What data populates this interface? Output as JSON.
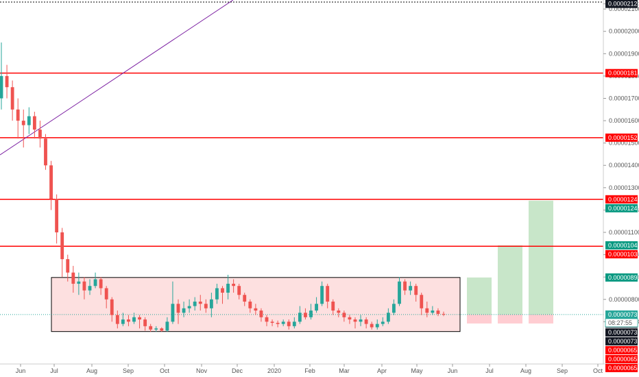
{
  "chart_data": {
    "type": "candlestick",
    "title": "",
    "xlabel": "",
    "ylabel": "",
    "grid": false,
    "ylim": [
      6.3e-06,
      2.125e-05
    ],
    "y_ticks": [
      "0.00002123",
      "0.00002100",
      "0.00002000",
      "0.00001900",
      "0.00001800",
      "0.00001700",
      "0.00001600",
      "0.00001500",
      "0.00001400",
      "0.00001300",
      "0.00001200",
      "0.00001100",
      "0.00001000",
      "0.00000900",
      "0.00000800",
      "0.00000700"
    ],
    "x_ticks": [
      "Jun",
      "Jul",
      "Aug",
      "Sep",
      "Oct",
      "Nov",
      "Dec",
      "2020",
      "Feb",
      "Mar",
      "Apr",
      "May",
      "Jun",
      "Jul",
      "Aug",
      "Sep",
      "Oct"
    ],
    "colors": {
      "up": "#26a69a",
      "down": "#ef5350",
      "level": "#ff0000",
      "trendline": "#7b1fa2",
      "range_fill": "#fde0e0",
      "target_fill": "#c8e6c9",
      "stop_fill": "#ffcdd2",
      "current_line": "#26a69a"
    },
    "horizontal_levels": [
      1.813e-05,
      1.524e-05,
      1.248e-05,
      1.038e-05
    ],
    "range_box": {
      "top": 8.98e-06,
      "bottom": 6.56e-06
    },
    "current_price": 7.32e-06,
    "countdown": "08:27:55",
    "candles": [
      {
        "o": 1.7e-05,
        "c": 1.8e-05,
        "h": 1.95e-05,
        "l": 1.65e-05
      },
      {
        "o": 1.8e-05,
        "c": 1.75e-05,
        "h": 1.85e-05,
        "l": 1.7e-05
      },
      {
        "o": 1.75e-05,
        "c": 1.65e-05,
        "h": 1.78e-05,
        "l": 1.6e-05
      },
      {
        "o": 1.65e-05,
        "c": 1.6e-05,
        "h": 1.7e-05,
        "l": 1.52e-05
      },
      {
        "o": 1.6e-05,
        "c": 1.58e-05,
        "h": 1.65e-05,
        "l": 1.48e-05
      },
      {
        "o": 1.58e-05,
        "c": 1.62e-05,
        "h": 1.66e-05,
        "l": 1.54e-05
      },
      {
        "o": 1.62e-05,
        "c": 1.56e-05,
        "h": 1.64e-05,
        "l": 1.52e-05
      },
      {
        "o": 1.56e-05,
        "c": 1.52e-05,
        "h": 1.6e-05,
        "l": 1.48e-05
      },
      {
        "o": 1.52e-05,
        "c": 1.4e-05,
        "h": 1.54e-05,
        "l": 1.38e-05
      },
      {
        "o": 1.4e-05,
        "c": 1.25e-05,
        "h": 1.42e-05,
        "l": 1.2e-05
      },
      {
        "o": 1.25e-05,
        "c": 1.1e-05,
        "h": 1.27e-05,
        "l": 1.05e-05
      },
      {
        "o": 1.1e-05,
        "c": 9.8e-06,
        "h": 1.12e-05,
        "l": 9e-06
      },
      {
        "o": 9.8e-06,
        "c": 9.2e-06,
        "h": 1e-05,
        "l": 8.8e-06
      },
      {
        "o": 9.2e-06,
        "c": 8.7e-06,
        "h": 9.5e-06,
        "l": 8.3e-06
      },
      {
        "o": 8.7e-06,
        "c": 8.8e-06,
        "h": 9.2e-06,
        "l": 8.2e-06
      },
      {
        "o": 8.8e-06,
        "c": 8.4e-06,
        "h": 9e-06,
        "l": 8e-06
      },
      {
        "o": 8.4e-06,
        "c": 8.6e-06,
        "h": 8.9e-06,
        "l": 8.2e-06
      },
      {
        "o": 8.6e-06,
        "c": 8.9e-06,
        "h": 9.2e-06,
        "l": 8.5e-06
      },
      {
        "o": 8.9e-06,
        "c": 8.5e-06,
        "h": 9e-06,
        "l": 8.2e-06
      },
      {
        "o": 8.5e-06,
        "c": 8e-06,
        "h": 8.6e-06,
        "l": 7.6e-06
      },
      {
        "o": 8e-06,
        "c": 7.3e-06,
        "h": 8.1e-06,
        "l": 7e-06
      },
      {
        "o": 7.3e-06,
        "c": 6.9e-06,
        "h": 7.5e-06,
        "l": 6.7e-06
      },
      {
        "o": 6.9e-06,
        "c": 7.1e-06,
        "h": 7.4e-06,
        "l": 6.8e-06
      },
      {
        "o": 7.1e-06,
        "c": 7e-06,
        "h": 7.3e-06,
        "l": 6.8e-06
      },
      {
        "o": 7e-06,
        "c": 7.2e-06,
        "h": 7.4e-06,
        "l": 6.9e-06
      },
      {
        "o": 7.2e-06,
        "c": 7.1e-06,
        "h": 7.3e-06,
        "l": 6.7e-06
      },
      {
        "o": 7.1e-06,
        "c": 6.8e-06,
        "h": 7.2e-06,
        "l": 6.6e-06
      },
      {
        "o": 6.8e-06,
        "c": 6.65e-06,
        "h": 6.9e-06,
        "l": 6.55e-06
      },
      {
        "o": 6.65e-06,
        "c": 6.7e-06,
        "h": 6.8e-06,
        "l": 6.55e-06
      },
      {
        "o": 6.7e-06,
        "c": 6.6e-06,
        "h": 6.75e-06,
        "l": 6.55e-06
      },
      {
        "o": 6.6e-06,
        "c": 7e-06,
        "h": 7.2e-06,
        "l": 6.55e-06
      },
      {
        "o": 7e-06,
        "c": 7.8e-06,
        "h": 8.8e-06,
        "l": 6.9e-06
      },
      {
        "o": 7.8e-06,
        "c": 7.4e-06,
        "h": 8e-06,
        "l": 6.9e-06
      },
      {
        "o": 7.4e-06,
        "c": 7.6e-06,
        "h": 7.9e-06,
        "l": 7.2e-06
      },
      {
        "o": 7.6e-06,
        "c": 7.7e-06,
        "h": 8e-06,
        "l": 7.4e-06
      },
      {
        "o": 7.7e-06,
        "c": 7.9e-06,
        "h": 8.1e-06,
        "l": 7.5e-06
      },
      {
        "o": 7.9e-06,
        "c": 7.8e-06,
        "h": 8.2e-06,
        "l": 7.5e-06
      },
      {
        "o": 7.8e-06,
        "c": 7.6e-06,
        "h": 8e-06,
        "l": 7.4e-06
      },
      {
        "o": 7.6e-06,
        "c": 8e-06,
        "h": 8.3e-06,
        "l": 7.2e-06
      },
      {
        "o": 8e-06,
        "c": 8.5e-06,
        "h": 8.7e-06,
        "l": 7.8e-06
      },
      {
        "o": 8.5e-06,
        "c": 8.3e-06,
        "h": 8.6e-06,
        "l": 7.8e-06
      },
      {
        "o": 8.3e-06,
        "c": 8.7e-06,
        "h": 9.1e-06,
        "l": 8e-06
      },
      {
        "o": 8.7e-06,
        "c": 8.6e-06,
        "h": 8.9e-06,
        "l": 8.3e-06
      },
      {
        "o": 8.6e-06,
        "c": 8.2e-06,
        "h": 8.7e-06,
        "l": 8e-06
      },
      {
        "o": 8.2e-06,
        "c": 7.9e-06,
        "h": 8.3e-06,
        "l": 7.7e-06
      },
      {
        "o": 7.9e-06,
        "c": 7.6e-06,
        "h": 8e-06,
        "l": 7.4e-06
      },
      {
        "o": 7.6e-06,
        "c": 7.5e-06,
        "h": 7.8e-06,
        "l": 7.3e-06
      },
      {
        "o": 7.5e-06,
        "c": 7.2e-06,
        "h": 7.6e-06,
        "l": 7e-06
      },
      {
        "o": 7.2e-06,
        "c": 7e-06,
        "h": 7.3e-06,
        "l": 6.8e-06
      },
      {
        "o": 7e-06,
        "c": 6.95e-06,
        "h": 7.1e-06,
        "l": 6.8e-06
      },
      {
        "o": 6.95e-06,
        "c": 6.9e-06,
        "h": 7.05e-06,
        "l": 6.75e-06
      },
      {
        "o": 6.9e-06,
        "c": 7e-06,
        "h": 7.1e-06,
        "l": 6.8e-06
      },
      {
        "o": 7e-06,
        "c": 6.8e-06,
        "h": 7.1e-06,
        "l": 6.65e-06
      },
      {
        "o": 6.8e-06,
        "c": 7e-06,
        "h": 7.2e-06,
        "l": 6.7e-06
      },
      {
        "o": 7e-06,
        "c": 7.4e-06,
        "h": 7.7e-06,
        "l": 6.9e-06
      },
      {
        "o": 7.4e-06,
        "c": 7.2e-06,
        "h": 7.6e-06,
        "l": 7.1e-06
      },
      {
        "o": 7.2e-06,
        "c": 7.5e-06,
        "h": 7.8e-06,
        "l": 7.1e-06
      },
      {
        "o": 7.5e-06,
        "c": 7.8e-06,
        "h": 8.1e-06,
        "l": 7.4e-06
      },
      {
        "o": 7.8e-06,
        "c": 8.6e-06,
        "h": 8.8e-06,
        "l": 7.7e-06
      },
      {
        "o": 8.6e-06,
        "c": 7.9e-06,
        "h": 8.7e-06,
        "l": 7.6e-06
      },
      {
        "o": 7.9e-06,
        "c": 7.5e-06,
        "h": 8e-06,
        "l": 7.3e-06
      },
      {
        "o": 7.5e-06,
        "c": 7.4e-06,
        "h": 7.6e-06,
        "l": 7.2e-06
      },
      {
        "o": 7.4e-06,
        "c": 7.2e-06,
        "h": 7.5e-06,
        "l": 7e-06
      },
      {
        "o": 7.2e-06,
        "c": 7.1e-06,
        "h": 7.3e-06,
        "l": 6.9e-06
      },
      {
        "o": 7.1e-06,
        "c": 7e-06,
        "h": 7.2e-06,
        "l": 6.7e-06
      },
      {
        "o": 7e-06,
        "c": 7.1e-06,
        "h": 7.3e-06,
        "l": 6.8e-06
      },
      {
        "o": 7.1e-06,
        "c": 6.9e-06,
        "h": 7.2e-06,
        "l": 6.7e-06
      },
      {
        "o": 6.9e-06,
        "c": 6.75e-06,
        "h": 7e-06,
        "l": 6.65e-06
      },
      {
        "o": 6.75e-06,
        "c": 6.9e-06,
        "h": 7.1e-06,
        "l": 6.65e-06
      },
      {
        "o": 6.9e-06,
        "c": 7e-06,
        "h": 7.2e-06,
        "l": 6.8e-06
      },
      {
        "o": 7e-06,
        "c": 7.4e-06,
        "h": 7.6e-06,
        "l": 6.9e-06
      },
      {
        "o": 7.4e-06,
        "c": 7.8e-06,
        "h": 8e-06,
        "l": 7.3e-06
      },
      {
        "o": 7.8e-06,
        "c": 8.8e-06,
        "h": 9e-06,
        "l": 7.7e-06
      },
      {
        "o": 8.8e-06,
        "c": 8.4e-06,
        "h": 8.9e-06,
        "l": 8.2e-06
      },
      {
        "o": 8.4e-06,
        "c": 8.6e-06,
        "h": 8.8e-06,
        "l": 8.2e-06
      },
      {
        "o": 8.6e-06,
        "c": 8.2e-06,
        "h": 8.7e-06,
        "l": 7.9e-06
      },
      {
        "o": 8.2e-06,
        "c": 7.6e-06,
        "h": 8.3e-06,
        "l": 7.3e-06
      },
      {
        "o": 7.6e-06,
        "c": 7.4e-06,
        "h": 7.9e-06,
        "l": 7.2e-06
      },
      {
        "o": 7.4e-06,
        "c": 7.5e-06,
        "h": 7.7e-06,
        "l": 7.3e-06
      },
      {
        "o": 7.5e-06,
        "c": 7.35e-06,
        "h": 7.6e-06,
        "l": 7.25e-06
      },
      {
        "o": 7.35e-06,
        "c": 7.32e-06,
        "h": 7.45e-06,
        "l": 7.25e-06
      }
    ],
    "projections": [
      {
        "target": 8.98e-06,
        "stop": 6.92e-06
      },
      {
        "target": 1.042e-05,
        "stop": 6.92e-06
      },
      {
        "target": 1.242e-05,
        "stop": 6.92e-06
      }
    ],
    "price_tags": [
      {
        "text": "0.00002123",
        "bg": "#131722",
        "value": 2.123e-05
      },
      {
        "text": "0.00001813",
        "bg": "#ff0000",
        "value": 1.813e-05
      },
      {
        "text": "0.00001524",
        "bg": "#ff0000",
        "value": 1.524e-05
      },
      {
        "text": "0.00001248",
        "bg": "#ff0000",
        "value": 1.248e-05
      },
      {
        "text": "0.00001242",
        "bg": "#089981",
        "value": 1.242e-05
      },
      {
        "text": "0.00001042",
        "bg": "#089981",
        "value": 1.042e-05
      },
      {
        "text": "0.00001038",
        "bg": "#ff0000",
        "value": 1.038e-05
      },
      {
        "text": "0.00000898",
        "bg": "#089981",
        "value": 8.98e-06
      },
      {
        "text": "0.00000732",
        "bg": "#26a69a",
        "value": 7.32e-06
      },
      {
        "text": "0.00000732",
        "bg": "#131722",
        "value": 7.32e-06
      },
      {
        "text": "0.00000732",
        "bg": "#131722",
        "value": 7.32e-06
      },
      {
        "text": "0.00000732",
        "bg": "#131722",
        "value": 7.32e-06
      },
      {
        "text": "0.00000656",
        "bg": "#ff0000",
        "value": 6.56e-06
      },
      {
        "text": "0.00000655",
        "bg": "#ff0000",
        "value": 6.55e-06
      },
      {
        "text": "0.00000654",
        "bg": "#ff0000",
        "value": 6.54e-06
      }
    ]
  }
}
